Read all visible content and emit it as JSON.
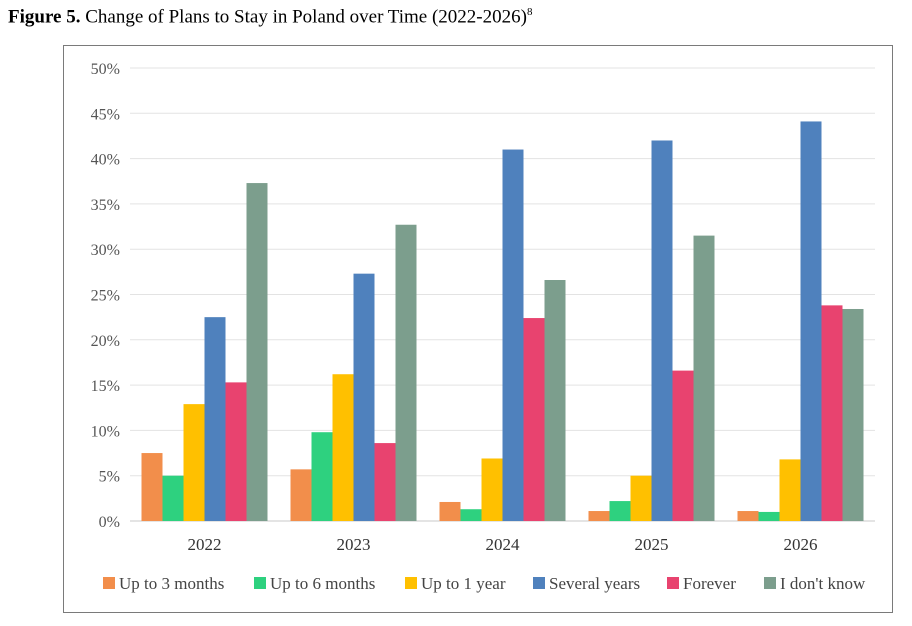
{
  "caption": {
    "label": "Figure 5.",
    "text": "Change of Plans to Stay in Poland over Time (2022-2026)",
    "footnote": "8"
  },
  "chart_data": {
    "type": "bar",
    "categories": [
      "2022",
      "2023",
      "2024",
      "2025",
      "2026"
    ],
    "ylim": [
      0,
      50
    ],
    "yticks": [
      "0%",
      "5%",
      "10%",
      "15%",
      "20%",
      "25%",
      "30%",
      "35%",
      "40%",
      "45%",
      "50%"
    ],
    "grid": true,
    "legend_position": "bottom",
    "series": [
      {
        "name": "Up to 3 months",
        "color": "#F28E4B",
        "values": [
          7.5,
          5.7,
          2.1,
          1.1,
          1.1
        ]
      },
      {
        "name": "Up to 6 months",
        "color": "#2ED17F",
        "values": [
          5.0,
          9.8,
          1.3,
          2.2,
          1.0
        ]
      },
      {
        "name": "Up to 1 year",
        "color": "#FFC000",
        "values": [
          12.9,
          16.2,
          6.9,
          5.0,
          6.8
        ]
      },
      {
        "name": "Several years",
        "color": "#4F81BD",
        "values": [
          22.5,
          27.3,
          41.0,
          42.0,
          44.1
        ]
      },
      {
        "name": "Forever",
        "color": "#E8436F",
        "values": [
          15.3,
          8.6,
          22.4,
          16.6,
          23.8
        ]
      },
      {
        "name": "I don't know",
        "color": "#7C9E8D",
        "values": [
          37.3,
          32.7,
          26.6,
          31.5,
          23.4
        ]
      }
    ]
  }
}
